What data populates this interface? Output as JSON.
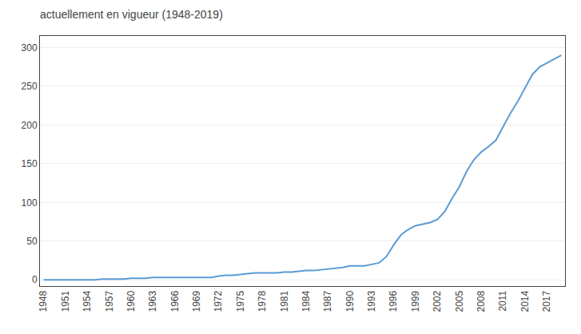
{
  "chart_data": {
    "type": "line",
    "title": "actuellement en vigueur (1948-2019)",
    "color": "#5B9BD5",
    "x": [
      1948,
      1949,
      1950,
      1951,
      1952,
      1953,
      1954,
      1955,
      1956,
      1957,
      1958,
      1959,
      1960,
      1961,
      1962,
      1963,
      1964,
      1965,
      1966,
      1967,
      1968,
      1969,
      1970,
      1971,
      1972,
      1973,
      1974,
      1975,
      1976,
      1977,
      1978,
      1979,
      1980,
      1981,
      1982,
      1983,
      1984,
      1985,
      1986,
      1987,
      1988,
      1989,
      1990,
      1991,
      1992,
      1993,
      1994,
      1995,
      1996,
      1997,
      1998,
      1999,
      2000,
      2001,
      2002,
      2003,
      2004,
      2005,
      2006,
      2007,
      2008,
      2009,
      2010,
      2011,
      2012,
      2013,
      2014,
      2015,
      2016,
      2017,
      2018,
      2019
    ],
    "values": [
      0,
      0,
      0,
      0,
      0,
      0,
      0,
      0,
      1,
      1,
      1,
      1,
      2,
      2,
      2,
      3,
      3,
      3,
      3,
      3,
      3,
      3,
      3,
      3,
      5,
      6,
      6,
      7,
      8,
      9,
      9,
      9,
      9,
      10,
      10,
      11,
      12,
      12,
      13,
      14,
      15,
      16,
      18,
      18,
      18,
      20,
      22,
      30,
      45,
      58,
      65,
      70,
      72,
      74,
      78,
      88,
      105,
      120,
      140,
      155,
      165,
      172,
      180,
      198,
      215,
      230,
      248,
      265,
      275,
      280,
      285,
      290
    ],
    "xlim": [
      1947.5,
      2019.5
    ],
    "xticks": [
      1948,
      1951,
      1954,
      1957,
      1960,
      1963,
      1966,
      1969,
      1972,
      1975,
      1978,
      1981,
      1984,
      1987,
      1990,
      1993,
      1996,
      1999,
      2002,
      2005,
      2008,
      2011,
      2014,
      2017
    ],
    "ylim": [
      -8,
      315
    ],
    "yticks": [
      0,
      50,
      100,
      150,
      200,
      250,
      300
    ],
    "grid": true
  }
}
